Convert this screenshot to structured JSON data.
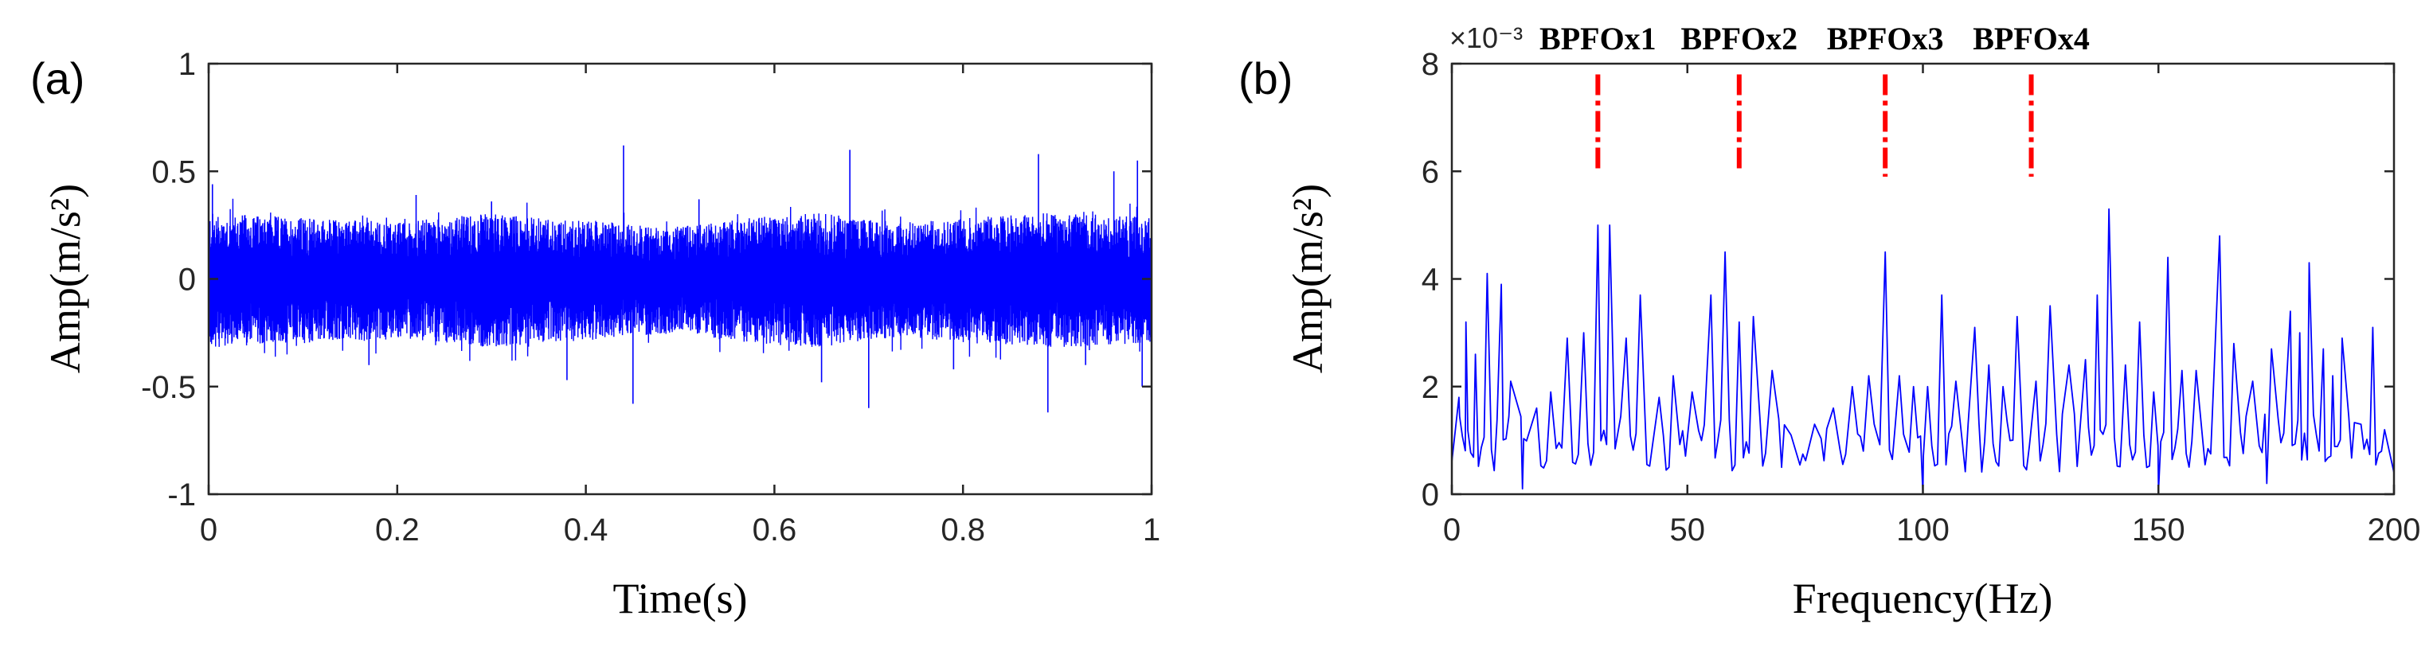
{
  "colors": {
    "signal": "#0000ff",
    "marker": "#ff0000",
    "axis": "#262626",
    "background": "#ffffff"
  },
  "chart_data": [
    {
      "type": "line",
      "panel_label": "(a)",
      "xlabel": "Time(s)",
      "ylabel": "Amp(m/s²)",
      "xlim": [
        0,
        1
      ],
      "ylim": [
        -1,
        1
      ],
      "xticks": [
        0,
        0.2,
        0.4,
        0.6,
        0.8,
        1
      ],
      "xtick_labels": [
        "0",
        "0.2",
        "0.4",
        "0.6",
        "0.8",
        "1"
      ],
      "yticks": [
        -1,
        -0.5,
        0,
        0.5,
        1
      ],
      "ytick_labels": [
        "-1",
        "-0.5",
        "0",
        "0.5",
        "1"
      ],
      "grid": false,
      "series": [
        {
          "style": "dense noisy vibration signal",
          "envelope": {
            "t": [
              0,
              0.05,
              0.1,
              0.15,
              0.2,
              0.25,
              0.3,
              0.35,
              0.4,
              0.45,
              0.5,
              0.55,
              0.6,
              0.65,
              0.7,
              0.75,
              0.8,
              0.85,
              0.9,
              0.95,
              1
            ],
            "upper": [
              0.28,
              0.27,
              0.26,
              0.25,
              0.24,
              0.26,
              0.28,
              0.26,
              0.25,
              0.23,
              0.22,
              0.25,
              0.27,
              0.28,
              0.25,
              0.24,
              0.26,
              0.27,
              0.28,
              0.27,
              0.26
            ],
            "lower": [
              -0.29,
              -0.28,
              -0.27,
              -0.26,
              -0.25,
              -0.27,
              -0.29,
              -0.27,
              -0.26,
              -0.24,
              -0.23,
              -0.26,
              -0.28,
              -0.29,
              -0.26,
              -0.25,
              -0.27,
              -0.28,
              -0.29,
              -0.28,
              -0.27
            ]
          },
          "spikes": [
            {
              "t": 0.004,
              "v": 0.44
            },
            {
              "t": 0.17,
              "v": -0.4
            },
            {
              "t": 0.38,
              "v": -0.47
            },
            {
              "t": 0.44,
              "v": 0.62
            },
            {
              "t": 0.45,
              "v": -0.58
            },
            {
              "t": 0.65,
              "v": -0.48
            },
            {
              "t": 0.68,
              "v": 0.6
            },
            {
              "t": 0.7,
              "v": -0.6
            },
            {
              "t": 0.88,
              "v": 0.58
            },
            {
              "t": 0.89,
              "v": -0.62
            },
            {
              "t": 0.96,
              "v": 0.5
            },
            {
              "t": 0.985,
              "v": 0.55
            },
            {
              "t": 0.99,
              "v": -0.5
            },
            {
              "t": 0.22,
              "v": 0.39
            },
            {
              "t": 0.52,
              "v": 0.37
            },
            {
              "t": 0.79,
              "v": -0.42
            },
            {
              "t": 0.3,
              "v": 0.36
            },
            {
              "t": 0.93,
              "v": -0.4
            }
          ]
        }
      ]
    },
    {
      "type": "line",
      "panel_label": "(b)",
      "xlabel": "Frequency(Hz)",
      "ylabel": "Amp(m/s²)",
      "y_multiplier": "×10⁻³",
      "xlim": [
        0,
        200
      ],
      "ylim": [
        0,
        8
      ],
      "xticks": [
        0,
        50,
        100,
        150,
        200
      ],
      "xtick_labels": [
        "0",
        "50",
        "100",
        "150",
        "200"
      ],
      "yticks": [
        0,
        2,
        4,
        6,
        8
      ],
      "ytick_labels": [
        "0",
        "2",
        "4",
        "6",
        "8"
      ],
      "grid": false,
      "series": [
        {
          "peaks": [
            {
              "f": 1.5,
              "a": 1.8
            },
            {
              "f": 3,
              "a": 3.2
            },
            {
              "f": 5,
              "a": 2.6
            },
            {
              "f": 7.5,
              "a": 4.1
            },
            {
              "f": 10.5,
              "a": 3.9
            },
            {
              "f": 12.5,
              "a": 2.1
            },
            {
              "f": 18,
              "a": 1.6
            },
            {
              "f": 21,
              "a": 1.9
            },
            {
              "f": 24.5,
              "a": 2.9
            },
            {
              "f": 28,
              "a": 3.0
            },
            {
              "f": 31,
              "a": 5.0
            },
            {
              "f": 33.5,
              "a": 5.0
            },
            {
              "f": 37,
              "a": 2.9
            },
            {
              "f": 40,
              "a": 3.7
            },
            {
              "f": 44,
              "a": 1.8
            },
            {
              "f": 47,
              "a": 2.2
            },
            {
              "f": 51,
              "a": 1.9
            },
            {
              "f": 55,
              "a": 3.7
            },
            {
              "f": 58,
              "a": 4.5
            },
            {
              "f": 61,
              "a": 3.2
            },
            {
              "f": 64,
              "a": 3.3
            },
            {
              "f": 68,
              "a": 2.3
            },
            {
              "f": 72,
              "a": 1.1
            },
            {
              "f": 77,
              "a": 1.3
            },
            {
              "f": 81,
              "a": 1.6
            },
            {
              "f": 85,
              "a": 2.0
            },
            {
              "f": 88.5,
              "a": 2.2
            },
            {
              "f": 92,
              "a": 4.5
            },
            {
              "f": 95,
              "a": 2.2
            },
            {
              "f": 98,
              "a": 2.0
            },
            {
              "f": 101,
              "a": 2.0
            },
            {
              "f": 104,
              "a": 3.7
            },
            {
              "f": 107,
              "a": 2.1
            },
            {
              "f": 111,
              "a": 3.1
            },
            {
              "f": 114,
              "a": 2.4
            },
            {
              "f": 117,
              "a": 2.0
            },
            {
              "f": 120,
              "a": 3.3
            },
            {
              "f": 124,
              "a": 2.1
            },
            {
              "f": 127,
              "a": 3.5
            },
            {
              "f": 131,
              "a": 2.4
            },
            {
              "f": 134.5,
              "a": 2.5
            },
            {
              "f": 137,
              "a": 3.7
            },
            {
              "f": 139.5,
              "a": 5.3
            },
            {
              "f": 143,
              "a": 2.4
            },
            {
              "f": 146,
              "a": 3.2
            },
            {
              "f": 149,
              "a": 1.9
            },
            {
              "f": 152,
              "a": 4.4
            },
            {
              "f": 155,
              "a": 2.3
            },
            {
              "f": 158,
              "a": 2.3
            },
            {
              "f": 163,
              "a": 4.8
            },
            {
              "f": 166,
              "a": 2.8
            },
            {
              "f": 170,
              "a": 2.1
            },
            {
              "f": 174,
              "a": 2.7
            },
            {
              "f": 178,
              "a": 3.4
            },
            {
              "f": 180,
              "a": 3.0
            },
            {
              "f": 182,
              "a": 4.3
            },
            {
              "f": 185,
              "a": 2.7
            },
            {
              "f": 187,
              "a": 2.2
            },
            {
              "f": 189,
              "a": 2.9
            },
            {
              "f": 193,
              "a": 1.3
            },
            {
              "f": 195.5,
              "a": 3.1
            },
            {
              "f": 198,
              "a": 1.2
            }
          ],
          "dips": [
            {
              "f": 15,
              "a": 0.1
            },
            {
              "f": 70,
              "a": 0.5
            },
            {
              "f": 100,
              "a": 0.0
            },
            {
              "f": 150,
              "a": 0.05
            },
            {
              "f": 173,
              "a": 0.2
            },
            {
              "f": 200,
              "a": 0.4
            }
          ]
        }
      ],
      "annotations": [
        {
          "label": "BPFOx1",
          "f": 31,
          "a_from": 6.0,
          "a_to": 7.8
        },
        {
          "label": "BPFOx2",
          "f": 61,
          "a_from": 6.0,
          "a_to": 7.8
        },
        {
          "label": "BPFOx3",
          "f": 92,
          "a_from": 5.9,
          "a_to": 7.8
        },
        {
          "label": "BPFOx4",
          "f": 123,
          "a_from": 5.9,
          "a_to": 7.8
        }
      ]
    }
  ]
}
